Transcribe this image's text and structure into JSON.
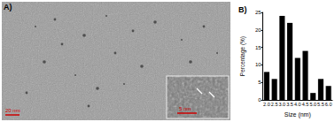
{
  "panel_a": {
    "label": "A)",
    "scale_bar": "20 nm",
    "inset_scale_bar": "5 nm"
  },
  "chart_data": {
    "type": "bar",
    "panel_label": "B)",
    "x_label": "Size (nm)",
    "y_label": "Percentage (%)",
    "categories": [
      "2.0",
      "2.5",
      "3.0",
      "3.5",
      "4.0",
      "4.5",
      "5.0",
      "5.5",
      "6.0"
    ],
    "values": [
      8,
      6,
      24,
      22,
      12,
      14,
      2,
      6,
      4
    ],
    "color": "#000000",
    "ylim": [
      0,
      25
    ],
    "yticks": [
      0,
      5,
      10,
      15,
      20,
      25
    ],
    "grid": false
  }
}
